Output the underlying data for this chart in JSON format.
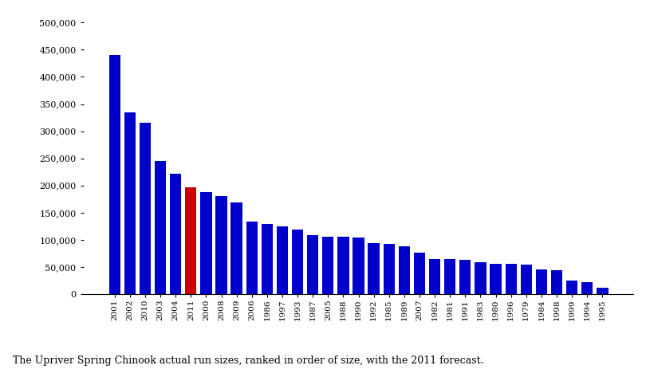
{
  "years": [
    "2001",
    "2002",
    "2010",
    "2003",
    "2004",
    "2011",
    "2000",
    "2008",
    "2009",
    "2006",
    "1986",
    "1997",
    "1993",
    "1987",
    "2005",
    "1988",
    "1990",
    "1992",
    "1985",
    "1989",
    "2007",
    "1982",
    "1981",
    "1991",
    "1983",
    "1980",
    "1996",
    "1979",
    "1984",
    "1998",
    "1999",
    "1994",
    "1995"
  ],
  "values": [
    440000,
    334000,
    315000,
    245000,
    222000,
    197000,
    188000,
    180000,
    169000,
    133000,
    129000,
    124000,
    119000,
    109000,
    106000,
    105000,
    104000,
    94000,
    92000,
    88000,
    76000,
    65000,
    64000,
    63000,
    59000,
    56000,
    55000,
    54000,
    45000,
    44000,
    25000,
    22000,
    11000
  ],
  "bar_color_default": "#0000CC",
  "bar_color_highlight": "#CC0000",
  "highlight_year": "2011",
  "ylim": [
    0,
    500000
  ],
  "yticks": [
    0,
    50000,
    100000,
    150000,
    200000,
    250000,
    300000,
    350000,
    400000,
    450000,
    500000
  ],
  "ytick_labels": [
    "0",
    "50,000",
    "100,000",
    "150,000",
    "200,000",
    "250,000",
    "300,000",
    "350,000",
    "400,000",
    "450,000",
    "500,000"
  ],
  "caption": "The Upriver Spring Chinook actual run sizes, ranked in order of size, with the 2011 forecast.",
  "background_color": "#ffffff",
  "fig_width": 8.1,
  "fig_height": 4.73,
  "dpi": 100
}
